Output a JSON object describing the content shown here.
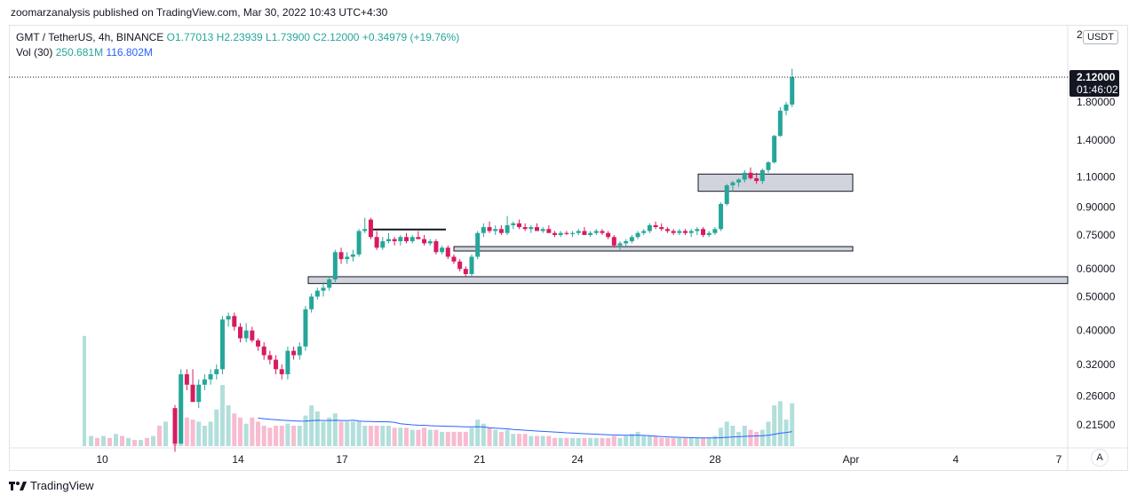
{
  "header": {
    "publisher_line": "zoomarzanalysis published on TradingView.com, Mar 30, 2022 10:43 UTC+4:30"
  },
  "legend": {
    "symbol": "GMT / TetherUS, 4h, BINANCE",
    "ohlc": "O1.77013  H2.23939  L1.73900  C2.12000  +0.34979 (+19.76%)",
    "vol_label": "Vol (30)",
    "vol_value": "250.681M",
    "vol_ma": "116.802M"
  },
  "axis": {
    "currency_button": "USDT",
    "auto_button": "A",
    "top_partial": "2",
    "price_ticks": [
      "1.80000",
      "1.40000",
      "1.10000",
      "0.90000",
      "0.75000",
      "0.60000",
      "0.50000",
      "0.40000",
      "0.32000",
      "0.26000",
      "0.21500"
    ],
    "price_tick_values": [
      1.8,
      1.4,
      1.1,
      0.9,
      0.75,
      0.6,
      0.5,
      0.4,
      0.32,
      0.26,
      0.215
    ],
    "current_price": "2.12000",
    "countdown": "01:46:02",
    "time_ticks": [
      "10",
      "14",
      "17",
      "21",
      "24",
      "28",
      "Apr",
      "4",
      "7"
    ]
  },
  "brand": {
    "name": "TradingView"
  },
  "colors": {
    "up": "#26a69a",
    "down": "#d81b60",
    "vol_up": "#b2dfdb",
    "vol_down": "#f8bbd0",
    "vol_ma_line": "#2962ff",
    "zone_fill": "#d1d4dc"
  },
  "chart_data": {
    "type": "candlestick",
    "scale": "log",
    "ylim": [
      0.2,
      2.3
    ],
    "series": [
      {
        "date": "Mar 12",
        "ohlc": [
          0.24,
          0.245,
          0.18,
          0.19
        ],
        "volume": 0.06
      },
      {
        "date": "Mar 12",
        "ohlc": [
          0.19,
          0.31,
          0.19,
          0.3
        ],
        "volume": 0.27
      },
      {
        "date": "Mar 12",
        "ohlc": [
          0.3,
          0.31,
          0.27,
          0.28
        ],
        "volume": 0.14
      },
      {
        "date": "Mar 13",
        "ohlc": [
          0.28,
          0.31,
          0.26,
          0.25
        ],
        "volume": 0.13
      },
      {
        "date": "Mar 13",
        "ohlc": [
          0.25,
          0.29,
          0.24,
          0.28
        ],
        "volume": 0.12
      },
      {
        "date": "Mar 13",
        "ohlc": [
          0.28,
          0.3,
          0.27,
          0.29
        ],
        "volume": 0.1
      },
      {
        "date": "Mar 13",
        "ohlc": [
          0.29,
          0.31,
          0.28,
          0.3
        ],
        "volume": 0.12
      },
      {
        "date": "Mar 13",
        "ohlc": [
          0.3,
          0.32,
          0.29,
          0.31
        ],
        "volume": 0.18
      },
      {
        "date": "Mar 14",
        "ohlc": [
          0.31,
          0.44,
          0.3,
          0.43
        ],
        "volume": 0.3
      },
      {
        "date": "Mar 14",
        "ohlc": [
          0.43,
          0.45,
          0.41,
          0.44
        ],
        "volume": 0.2
      },
      {
        "date": "Mar 14",
        "ohlc": [
          0.44,
          0.45,
          0.4,
          0.41
        ],
        "volume": 0.16
      },
      {
        "date": "Mar 14",
        "ohlc": [
          0.41,
          0.42,
          0.37,
          0.38
        ],
        "volume": 0.14
      },
      {
        "date": "Mar 14",
        "ohlc": [
          0.38,
          0.42,
          0.37,
          0.4
        ],
        "volume": 0.11
      },
      {
        "date": "Mar 14",
        "ohlc": [
          0.4,
          0.41,
          0.37,
          0.375
        ],
        "volume": 0.14
      },
      {
        "date": "Mar 15",
        "ohlc": [
          0.375,
          0.38,
          0.35,
          0.36
        ],
        "volume": 0.12
      },
      {
        "date": "Mar 15",
        "ohlc": [
          0.36,
          0.37,
          0.33,
          0.34
        ],
        "volume": 0.1
      },
      {
        "date": "Mar 15",
        "ohlc": [
          0.34,
          0.35,
          0.32,
          0.33
        ],
        "volume": 0.09
      },
      {
        "date": "Mar 15",
        "ohlc": [
          0.33,
          0.34,
          0.3,
          0.31
        ],
        "volume": 0.1
      },
      {
        "date": "Mar 15",
        "ohlc": [
          0.31,
          0.32,
          0.29,
          0.3
        ],
        "volume": 0.1
      },
      {
        "date": "Mar 15",
        "ohlc": [
          0.3,
          0.36,
          0.29,
          0.35
        ],
        "volume": 0.11
      },
      {
        "date": "Mar 16",
        "ohlc": [
          0.35,
          0.36,
          0.33,
          0.34
        ],
        "volume": 0.1
      },
      {
        "date": "Mar 16",
        "ohlc": [
          0.34,
          0.37,
          0.33,
          0.36
        ],
        "volume": 0.1
      },
      {
        "date": "Mar 16",
        "ohlc": [
          0.36,
          0.47,
          0.35,
          0.46
        ],
        "volume": 0.15
      },
      {
        "date": "Mar 16",
        "ohlc": [
          0.46,
          0.51,
          0.45,
          0.5
        ],
        "volume": 0.2
      },
      {
        "date": "Mar 16",
        "ohlc": [
          0.5,
          0.53,
          0.49,
          0.52
        ],
        "volume": 0.17
      },
      {
        "date": "Mar 16",
        "ohlc": [
          0.52,
          0.55,
          0.5,
          0.53
        ],
        "volume": 0.12
      },
      {
        "date": "Mar 17",
        "ohlc": [
          0.53,
          0.57,
          0.52,
          0.56
        ],
        "volume": 0.14
      },
      {
        "date": "Mar 17",
        "ohlc": [
          0.56,
          0.68,
          0.55,
          0.67
        ],
        "volume": 0.16
      },
      {
        "date": "Mar 17",
        "ohlc": [
          0.67,
          0.69,
          0.62,
          0.64
        ],
        "volume": 0.12
      },
      {
        "date": "Mar 17",
        "ohlc": [
          0.64,
          0.67,
          0.62,
          0.65
        ],
        "volume": 0.12
      },
      {
        "date": "Mar 17",
        "ohlc": [
          0.65,
          0.68,
          0.63,
          0.66
        ],
        "volume": 0.12
      },
      {
        "date": "Mar 17",
        "ohlc": [
          0.66,
          0.78,
          0.65,
          0.77
        ],
        "volume": 0.12
      },
      {
        "date": "Mar 18",
        "ohlc": [
          0.77,
          0.84,
          0.76,
          0.78
        ],
        "volume": 0.1
      },
      {
        "date": "Mar 18",
        "ohlc": [
          0.83,
          0.84,
          0.73,
          0.74
        ],
        "volume": 0.1
      },
      {
        "date": "Mar 18",
        "ohlc": [
          0.74,
          0.77,
          0.68,
          0.69
        ],
        "volume": 0.1
      },
      {
        "date": "Mar 18",
        "ohlc": [
          0.69,
          0.74,
          0.68,
          0.72
        ],
        "volume": 0.1
      },
      {
        "date": "Mar 18",
        "ohlc": [
          0.72,
          0.76,
          0.71,
          0.73
        ],
        "volume": 0.1
      },
      {
        "date": "Mar 18",
        "ohlc": [
          0.73,
          0.74,
          0.7,
          0.72
        ],
        "volume": 0.09
      },
      {
        "date": "Mar 19",
        "ohlc": [
          0.72,
          0.75,
          0.7,
          0.74
        ],
        "volume": 0.09
      },
      {
        "date": "Mar 19",
        "ohlc": [
          0.74,
          0.76,
          0.71,
          0.72
        ],
        "volume": 0.09
      },
      {
        "date": "Mar 19",
        "ohlc": [
          0.72,
          0.75,
          0.71,
          0.74
        ],
        "volume": 0.08
      },
      {
        "date": "Mar 19",
        "ohlc": [
          0.74,
          0.77,
          0.73,
          0.73
        ],
        "volume": 0.08
      },
      {
        "date": "Mar 19",
        "ohlc": [
          0.73,
          0.75,
          0.7,
          0.71
        ],
        "volume": 0.09
      },
      {
        "date": "Mar 19",
        "ohlc": [
          0.71,
          0.73,
          0.7,
          0.72
        ],
        "volume": 0.08
      },
      {
        "date": "Mar 20",
        "ohlc": [
          0.72,
          0.73,
          0.66,
          0.67
        ],
        "volume": 0.08
      },
      {
        "date": "Mar 20",
        "ohlc": [
          0.67,
          0.7,
          0.66,
          0.69
        ],
        "volume": 0.07
      },
      {
        "date": "Mar 20",
        "ohlc": [
          0.69,
          0.7,
          0.64,
          0.65
        ],
        "volume": 0.07
      },
      {
        "date": "Mar 20",
        "ohlc": [
          0.65,
          0.66,
          0.62,
          0.63
        ],
        "volume": 0.07
      },
      {
        "date": "Mar 20",
        "ohlc": [
          0.63,
          0.64,
          0.59,
          0.6
        ],
        "volume": 0.07
      },
      {
        "date": "Mar 21",
        "ohlc": [
          0.6,
          0.61,
          0.57,
          0.58
        ],
        "volume": 0.07
      },
      {
        "date": "Mar 21",
        "ohlc": [
          0.58,
          0.66,
          0.57,
          0.65
        ],
        "volume": 0.09
      },
      {
        "date": "Mar 21",
        "ohlc": [
          0.65,
          0.77,
          0.64,
          0.76
        ],
        "volume": 0.13
      },
      {
        "date": "Mar 21",
        "ohlc": [
          0.76,
          0.81,
          0.74,
          0.79
        ],
        "volume": 0.11
      },
      {
        "date": "Mar 21",
        "ohlc": [
          0.79,
          0.82,
          0.76,
          0.77
        ],
        "volume": 0.09
      },
      {
        "date": "Mar 21",
        "ohlc": [
          0.77,
          0.8,
          0.75,
          0.78
        ],
        "volume": 0.08
      },
      {
        "date": "Mar 22",
        "ohlc": [
          0.78,
          0.8,
          0.75,
          0.76
        ],
        "volume": 0.07
      },
      {
        "date": "Mar 22",
        "ohlc": [
          0.76,
          0.85,
          0.75,
          0.8
        ],
        "volume": 0.08
      },
      {
        "date": "Mar 22",
        "ohlc": [
          0.8,
          0.82,
          0.78,
          0.81
        ],
        "volume": 0.06
      },
      {
        "date": "Mar 22",
        "ohlc": [
          0.81,
          0.83,
          0.78,
          0.79
        ],
        "volume": 0.06
      },
      {
        "date": "Mar 22",
        "ohlc": [
          0.79,
          0.81,
          0.77,
          0.78
        ],
        "volume": 0.06
      },
      {
        "date": "Mar 22",
        "ohlc": [
          0.78,
          0.8,
          0.76,
          0.79
        ],
        "volume": 0.05
      },
      {
        "date": "Mar 23",
        "ohlc": [
          0.79,
          0.81,
          0.77,
          0.77
        ],
        "volume": 0.05
      },
      {
        "date": "Mar 23",
        "ohlc": [
          0.77,
          0.79,
          0.76,
          0.78
        ],
        "volume": 0.05
      },
      {
        "date": "Mar 23",
        "ohlc": [
          0.78,
          0.8,
          0.76,
          0.76
        ],
        "volume": 0.05
      },
      {
        "date": "Mar 23",
        "ohlc": [
          0.76,
          0.77,
          0.74,
          0.75
        ],
        "volume": 0.04
      },
      {
        "date": "Mar 23",
        "ohlc": [
          0.75,
          0.77,
          0.74,
          0.76
        ],
        "volume": 0.04
      },
      {
        "date": "Mar 23",
        "ohlc": [
          0.76,
          0.77,
          0.75,
          0.755
        ],
        "volume": 0.04
      },
      {
        "date": "Mar 24",
        "ohlc": [
          0.755,
          0.77,
          0.74,
          0.76
        ],
        "volume": 0.04
      },
      {
        "date": "Mar 24",
        "ohlc": [
          0.76,
          0.78,
          0.75,
          0.77
        ],
        "volume": 0.04
      },
      {
        "date": "Mar 24",
        "ohlc": [
          0.77,
          0.79,
          0.75,
          0.75
        ],
        "volume": 0.04
      },
      {
        "date": "Mar 24",
        "ohlc": [
          0.75,
          0.77,
          0.74,
          0.76
        ],
        "volume": 0.04
      },
      {
        "date": "Mar 24",
        "ohlc": [
          0.76,
          0.78,
          0.75,
          0.77
        ],
        "volume": 0.04
      },
      {
        "date": "Mar 24",
        "ohlc": [
          0.77,
          0.78,
          0.75,
          0.76
        ],
        "volume": 0.04
      },
      {
        "date": "Mar 25",
        "ohlc": [
          0.76,
          0.77,
          0.73,
          0.74
        ],
        "volume": 0.04
      },
      {
        "date": "Mar 25",
        "ohlc": [
          0.74,
          0.75,
          0.69,
          0.7
        ],
        "volume": 0.05
      },
      {
        "date": "Mar 25",
        "ohlc": [
          0.7,
          0.72,
          0.68,
          0.71
        ],
        "volume": 0.04
      },
      {
        "date": "Mar 25",
        "ohlc": [
          0.71,
          0.73,
          0.69,
          0.72
        ],
        "volume": 0.05
      },
      {
        "date": "Mar 25",
        "ohlc": [
          0.72,
          0.75,
          0.71,
          0.74
        ],
        "volume": 0.06
      },
      {
        "date": "Mar 26",
        "ohlc": [
          0.74,
          0.77,
          0.73,
          0.76
        ],
        "volume": 0.07
      },
      {
        "date": "Mar 26",
        "ohlc": [
          0.76,
          0.78,
          0.75,
          0.77
        ],
        "volume": 0.05
      },
      {
        "date": "Mar 26",
        "ohlc": [
          0.77,
          0.81,
          0.76,
          0.8
        ],
        "volume": 0.05
      },
      {
        "date": "Mar 26",
        "ohlc": [
          0.8,
          0.82,
          0.78,
          0.79
        ],
        "volume": 0.05
      },
      {
        "date": "Mar 26",
        "ohlc": [
          0.79,
          0.81,
          0.77,
          0.78
        ],
        "volume": 0.04
      },
      {
        "date": "Mar 27",
        "ohlc": [
          0.78,
          0.79,
          0.76,
          0.77
        ],
        "volume": 0.04
      },
      {
        "date": "Mar 27",
        "ohlc": [
          0.77,
          0.78,
          0.75,
          0.76
        ],
        "volume": 0.04
      },
      {
        "date": "Mar 27",
        "ohlc": [
          0.76,
          0.78,
          0.75,
          0.77
        ],
        "volume": 0.04
      },
      {
        "date": "Mar 27",
        "ohlc": [
          0.77,
          0.78,
          0.75,
          0.76
        ],
        "volume": 0.04
      },
      {
        "date": "Mar 27",
        "ohlc": [
          0.76,
          0.78,
          0.74,
          0.77
        ],
        "volume": 0.04
      },
      {
        "date": "Mar 27",
        "ohlc": [
          0.77,
          0.79,
          0.75,
          0.78
        ],
        "volume": 0.04
      },
      {
        "date": "Mar 28",
        "ohlc": [
          0.78,
          0.79,
          0.74,
          0.75
        ],
        "volume": 0.04
      },
      {
        "date": "Mar 28",
        "ohlc": [
          0.75,
          0.77,
          0.74,
          0.76
        ],
        "volume": 0.04
      },
      {
        "date": "Mar 28",
        "ohlc": [
          0.76,
          0.79,
          0.75,
          0.78
        ],
        "volume": 0.05
      },
      {
        "date": "Mar 28",
        "ohlc": [
          0.78,
          0.93,
          0.77,
          0.92
        ],
        "volume": 0.09
      },
      {
        "date": "Mar 28",
        "ohlc": [
          0.92,
          1.05,
          0.91,
          1.04
        ],
        "volume": 0.12
      },
      {
        "date": "Mar 29",
        "ohlc": [
          1.04,
          1.07,
          1.0,
          1.06
        ],
        "volume": 0.1
      },
      {
        "date": "Mar 29",
        "ohlc": [
          1.06,
          1.09,
          1.03,
          1.08
        ],
        "volume": 0.07
      },
      {
        "date": "Mar 29",
        "ohlc": [
          1.08,
          1.15,
          1.06,
          1.13
        ],
        "volume": 0.1
      },
      {
        "date": "Mar 29",
        "ohlc": [
          1.13,
          1.17,
          1.08,
          1.09
        ],
        "volume": 0.08
      },
      {
        "date": "Mar 29",
        "ohlc": [
          1.09,
          1.13,
          1.05,
          1.07
        ],
        "volume": 0.07
      },
      {
        "date": "Mar 29",
        "ohlc": [
          1.07,
          1.16,
          1.05,
          1.15
        ],
        "volume": 0.08
      },
      {
        "date": "Mar 30",
        "ohlc": [
          1.15,
          1.22,
          1.13,
          1.21
        ],
        "volume": 0.12
      },
      {
        "date": "Mar 30",
        "ohlc": [
          1.21,
          1.45,
          1.2,
          1.44
        ],
        "volume": 0.2
      },
      {
        "date": "Mar 30",
        "ohlc": [
          1.44,
          1.74,
          1.43,
          1.7
        ],
        "volume": 0.22
      },
      {
        "date": "Mar 30",
        "ohlc": [
          1.7,
          1.8,
          1.65,
          1.77
        ],
        "volume": 0.13
      },
      {
        "date": "Mar 30",
        "ohlc": [
          1.77013,
          2.23939,
          1.739,
          2.12
        ],
        "volume": 0.21
      }
    ],
    "first_volume_spike": 0.54
  }
}
